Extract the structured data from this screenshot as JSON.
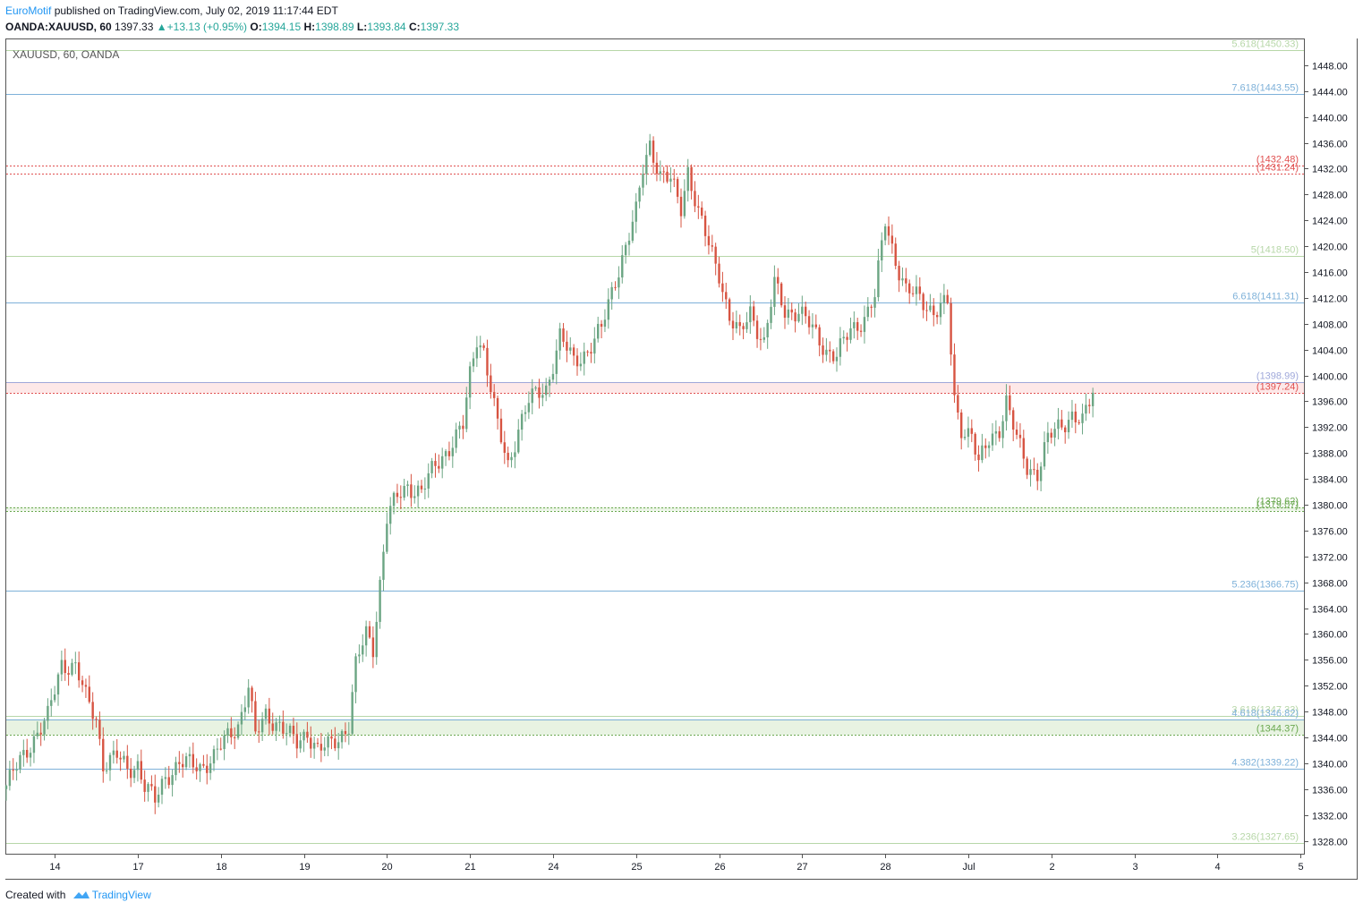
{
  "header": {
    "author": "EuroMotif",
    "published": "published on TradingView.com, July 02, 2019 11:17:44 EDT"
  },
  "symbol_line": {
    "symbol": "OANDA:XAUUSD, 60",
    "last": "1397.33",
    "change": "+13.13 (+0.95%)",
    "open_label": "O:",
    "open": "1394.15",
    "high_label": "H:",
    "high": "1398.89",
    "low_label": "L:",
    "low": "1393.84",
    "close_label": "C:",
    "close": "1397.33"
  },
  "footer": {
    "created_with": "Created with",
    "brand": "TradingView"
  },
  "colors": {
    "up": "#6ba583",
    "down": "#d75442",
    "fib_blue": "#7eb1d9",
    "fib_green": "#b7d7a8",
    "level_red": "#e05050",
    "level_green": "#6aa84f",
    "level_lavender": "#9fa8da",
    "accent": "#2196f3"
  },
  "chart_data": {
    "type": "candlestick",
    "title": "XAUUSD, 60, OANDA",
    "ylim": [
      1326,
      1452
    ],
    "y_ticks": [
      "1328.00",
      "1332.00",
      "1336.00",
      "1340.00",
      "1344.00",
      "1348.00",
      "1352.00",
      "1356.00",
      "1360.00",
      "1364.00",
      "1368.00",
      "1372.00",
      "1376.00",
      "1380.00",
      "1384.00",
      "1388.00",
      "1392.00",
      "1396.00",
      "1400.00",
      "1404.00",
      "1408.00",
      "1412.00",
      "1416.00",
      "1420.00",
      "1424.00",
      "1428.00",
      "1432.00",
      "1436.00",
      "1440.00",
      "1444.00",
      "1448.00"
    ],
    "x_ticks": [
      {
        "label": "14",
        "idx": 14
      },
      {
        "label": "17",
        "idx": 38
      },
      {
        "label": "18",
        "idx": 62
      },
      {
        "label": "19",
        "idx": 86
      },
      {
        "label": "20",
        "idx": 110
      },
      {
        "label": "21",
        "idx": 134
      },
      {
        "label": "24",
        "idx": 158
      },
      {
        "label": "25",
        "idx": 182
      },
      {
        "label": "26",
        "idx": 206
      },
      {
        "label": "27",
        "idx": 230
      },
      {
        "label": "28",
        "idx": 254
      },
      {
        "label": "Jul",
        "idx": 278
      },
      {
        "label": "2",
        "idx": 302
      },
      {
        "label": "3",
        "idx": 326
      },
      {
        "label": "4",
        "idx": 350
      },
      {
        "label": "5",
        "idx": 374
      }
    ],
    "x_domain": [
      0,
      375
    ],
    "levels": [
      {
        "label": "5.618(1450.33)",
        "value": 1450.33,
        "color": "#b7d7a8",
        "style": "solid"
      },
      {
        "label": "7.618(1443.55)",
        "value": 1443.55,
        "color": "#7eb1d9",
        "style": "solid"
      },
      {
        "label": "(1432.48)",
        "value": 1432.48,
        "color": "#e05050",
        "style": "dotted"
      },
      {
        "label": "(1431.24)",
        "value": 1431.24,
        "color": "#e05050",
        "style": "dotted"
      },
      {
        "label": "5(1418.50)",
        "value": 1418.5,
        "color": "#b7d7a8",
        "style": "solid"
      },
      {
        "label": "6.618(1411.31)",
        "value": 1411.31,
        "color": "#7eb1d9",
        "style": "solid"
      },
      {
        "label": "(1398.99)",
        "value": 1398.99,
        "color": "#9fa8da",
        "style": "solid"
      },
      {
        "label": "(1397.24)",
        "value": 1397.24,
        "color": "#e05050",
        "style": "dotted"
      },
      {
        "label": "(1379.62)",
        "value": 1379.62,
        "color": "#6aa84f",
        "style": "dotted"
      },
      {
        "label": "(1379.07)",
        "value": 1379.07,
        "color": "#6aa84f",
        "style": "dotted"
      },
      {
        "label": "5.236(1366.75)",
        "value": 1366.75,
        "color": "#7eb1d9",
        "style": "solid"
      },
      {
        "label": "3.618(1347.33)",
        "value": 1347.33,
        "color": "#b7d7a8",
        "style": "solid"
      },
      {
        "label": "4.618(1346.82)",
        "value": 1346.82,
        "color": "#7eb1d9",
        "style": "solid"
      },
      {
        "label": "(1344.37)",
        "value": 1344.37,
        "color": "#6aa84f",
        "style": "dotted"
      },
      {
        "label": "4.382(1339.22)",
        "value": 1339.22,
        "color": "#7eb1d9",
        "style": "solid"
      },
      {
        "label": "3.236(1327.65)",
        "value": 1327.65,
        "color": "#b7d7a8",
        "style": "solid"
      }
    ],
    "zones": [
      {
        "from": 1379.07,
        "to": 1379.62,
        "color": "#eaf4e4"
      },
      {
        "from": 1397.24,
        "to": 1398.99,
        "color": "#fde8e8"
      },
      {
        "from": 1344.37,
        "to": 1346.82,
        "color": "#e8f3e2"
      }
    ],
    "anchors": [
      [
        0,
        1336.5
      ],
      [
        8,
        1344
      ],
      [
        12,
        1347
      ],
      [
        16,
        1355.5
      ],
      [
        20,
        1355
      ],
      [
        23,
        1350
      ],
      [
        26,
        1347
      ],
      [
        28,
        1340
      ],
      [
        32,
        1341
      ],
      [
        35,
        1339
      ],
      [
        38,
        1340
      ],
      [
        40,
        1336.5
      ],
      [
        43,
        1334
      ],
      [
        46,
        1338
      ],
      [
        50,
        1340
      ],
      [
        56,
        1339.5
      ],
      [
        60,
        1341
      ],
      [
        64,
        1344
      ],
      [
        67,
        1346
      ],
      [
        70,
        1352
      ],
      [
        72,
        1344
      ],
      [
        75,
        1347.5
      ],
      [
        79,
        1346
      ],
      [
        82,
        1344
      ],
      [
        84,
        1343
      ],
      [
        87,
        1345
      ],
      [
        90,
        1342
      ],
      [
        93,
        1342.5
      ],
      [
        96,
        1344
      ],
      [
        99,
        1346
      ],
      [
        101,
        1355
      ],
      [
        104,
        1360
      ],
      [
        106,
        1358
      ],
      [
        108,
        1368
      ],
      [
        110,
        1378
      ],
      [
        113,
        1381
      ],
      [
        116,
        1383
      ],
      [
        120,
        1382
      ],
      [
        124,
        1386
      ],
      [
        128,
        1389
      ],
      [
        132,
        1392
      ],
      [
        134,
        1400
      ],
      [
        136,
        1406
      ],
      [
        138,
        1404
      ],
      [
        140,
        1398
      ],
      [
        142,
        1392
      ],
      [
        145,
        1386
      ],
      [
        148,
        1392
      ],
      [
        151,
        1396
      ],
      [
        156,
        1398
      ],
      [
        160,
        1406
      ],
      [
        164,
        1402
      ],
      [
        168,
        1404
      ],
      [
        172,
        1407
      ],
      [
        176,
        1415
      ],
      [
        179,
        1420
      ],
      [
        182,
        1425
      ],
      [
        184,
        1432
      ],
      [
        186,
        1436
      ],
      [
        189,
        1431
      ],
      [
        192,
        1430
      ],
      [
        195,
        1426
      ],
      [
        197,
        1432
      ],
      [
        200,
        1425
      ],
      [
        203,
        1420
      ],
      [
        206,
        1416
      ],
      [
        209,
        1409
      ],
      [
        212,
        1406
      ],
      [
        215,
        1410
      ],
      [
        219,
        1405
      ],
      [
        222,
        1414
      ],
      [
        225,
        1410
      ],
      [
        229,
        1410
      ],
      [
        233,
        1407
      ],
      [
        237,
        1404
      ],
      [
        240,
        1403
      ],
      [
        244,
        1407
      ],
      [
        248,
        1409
      ],
      [
        251,
        1412
      ],
      [
        254,
        1424
      ],
      [
        257,
        1418
      ],
      [
        260,
        1413
      ],
      [
        264,
        1412
      ],
      [
        268,
        1410
      ],
      [
        272,
        1411
      ],
      [
        274,
        1396
      ],
      [
        276,
        1392
      ],
      [
        279,
        1391
      ],
      [
        281,
        1386
      ],
      [
        284,
        1390
      ],
      [
        287,
        1392
      ],
      [
        289,
        1396
      ],
      [
        292,
        1390
      ],
      [
        295,
        1386
      ],
      [
        298,
        1385
      ],
      [
        301,
        1390
      ],
      [
        304,
        1392
      ],
      [
        308,
        1394
      ],
      [
        311,
        1392.5
      ],
      [
        314,
        1397.33
      ]
    ]
  }
}
